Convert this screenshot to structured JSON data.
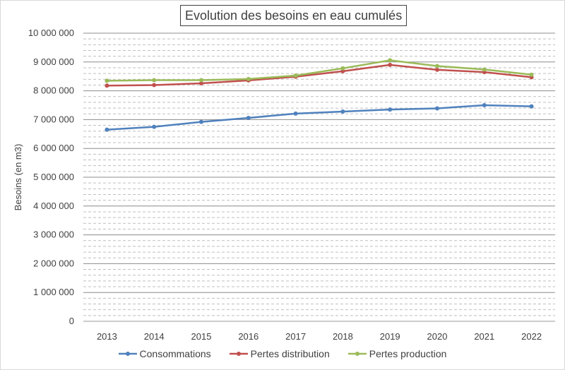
{
  "chart_data": {
    "type": "line",
    "title": "Evolution des besoins en eau cumulés",
    "xlabel": "",
    "ylabel": "Besoins (en m3)",
    "categories": [
      "2013",
      "2014",
      "2015",
      "2016",
      "2017",
      "2018",
      "2019",
      "2020",
      "2021",
      "2022"
    ],
    "ylim": [
      0,
      10000000
    ],
    "ytick_labels": [
      "0",
      "1 000 000",
      "2 000 000",
      "3 000 000",
      "4 000 000",
      "5 000 000",
      "6 000 000",
      "7 000 000",
      "8 000 000",
      "9 000 000",
      "10 000 000"
    ],
    "series": [
      {
        "name": "Consommations",
        "color": "#4f81bd",
        "values": [
          6650000,
          6750000,
          6920000,
          7060000,
          7210000,
          7280000,
          7350000,
          7390000,
          7500000,
          7460000
        ]
      },
      {
        "name": "Pertes distribution",
        "color": "#c0504d",
        "values": [
          8180000,
          8200000,
          8260000,
          8360000,
          8490000,
          8680000,
          8900000,
          8730000,
          8650000,
          8470000
        ]
      },
      {
        "name": "Pertes production",
        "color": "#9bbb59",
        "values": [
          8350000,
          8370000,
          8370000,
          8410000,
          8530000,
          8780000,
          9060000,
          8860000,
          8740000,
          8560000
        ]
      }
    ],
    "gridlines": "major solid, minor dashed",
    "legend_position": "bottom"
  }
}
